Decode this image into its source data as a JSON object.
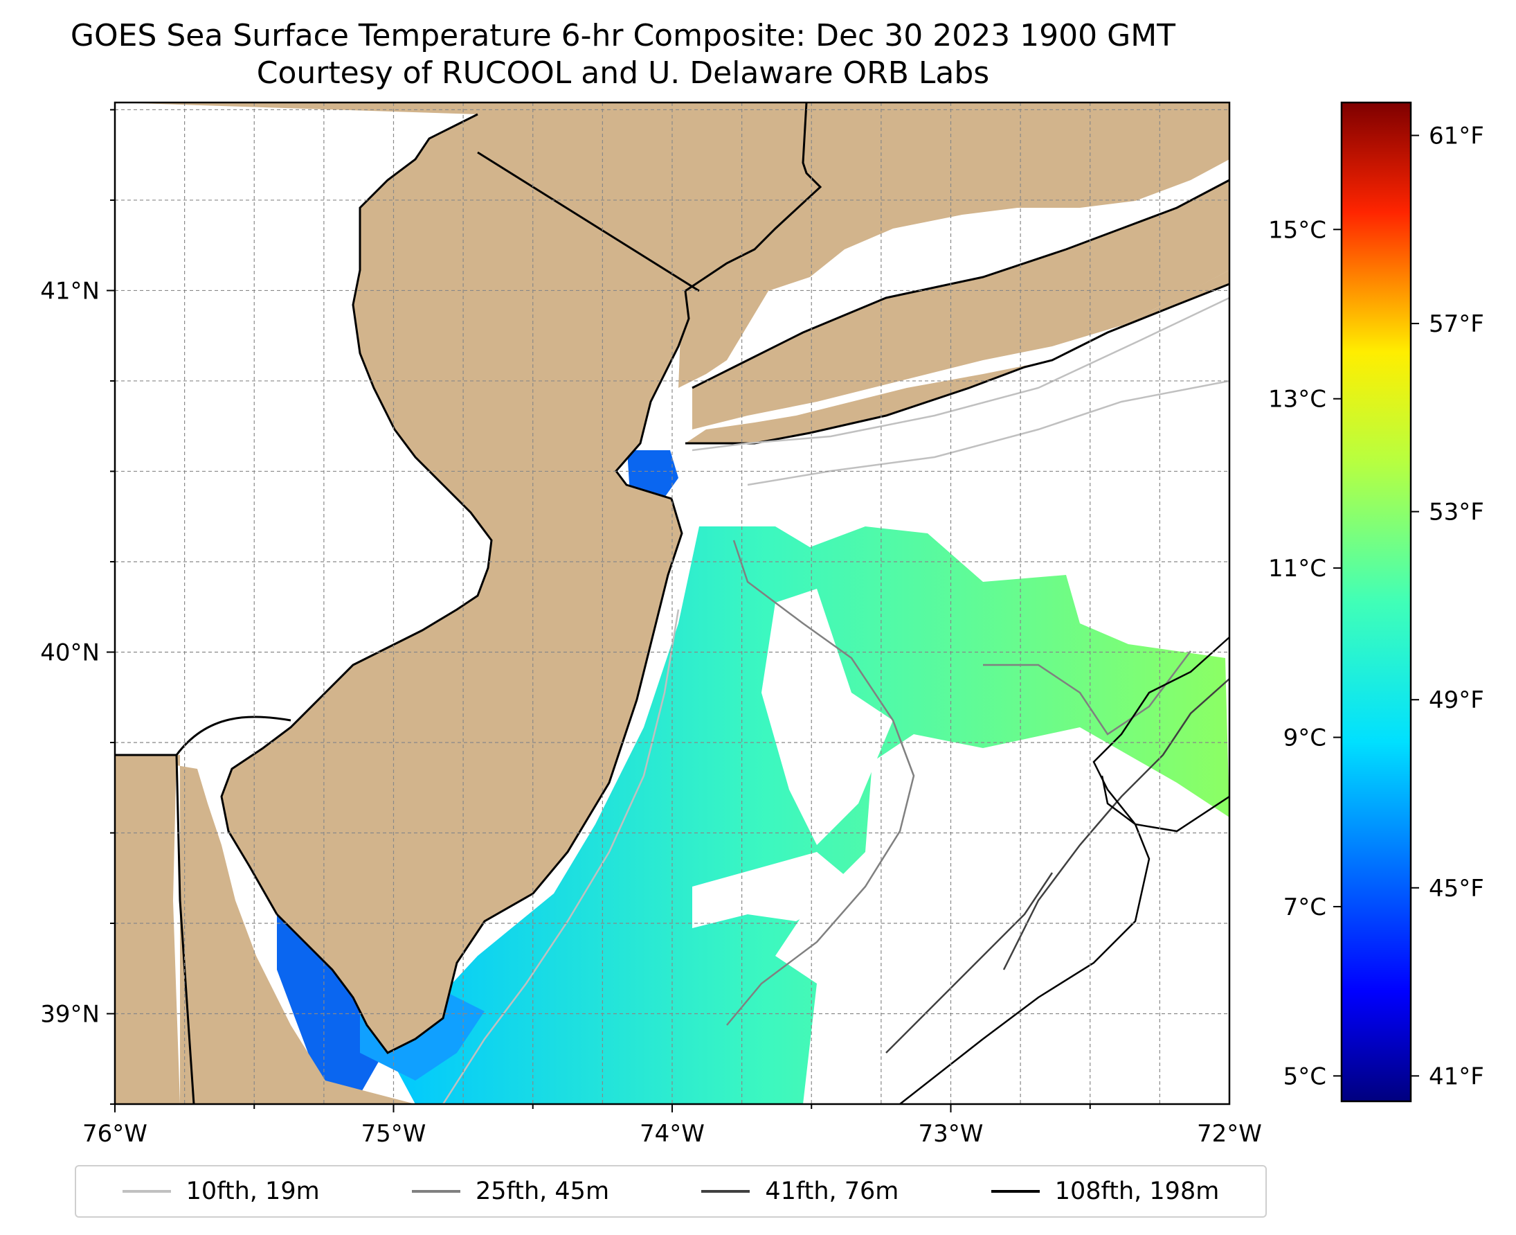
{
  "title": "GOES Sea Surface Temperature 6-hr Composite: Dec 30 2023 1900 GMT",
  "subtitle": "Courtesy of RUCOOL and U. Delaware ORB Labs",
  "map": {
    "extent": {
      "lon": [
        -76,
        -72
      ],
      "lat": [
        38.75,
        41.52
      ]
    },
    "lon_ticks": [
      {
        "value": -76,
        "label": "76°W"
      },
      {
        "value": -75,
        "label": "75°W"
      },
      {
        "value": -74,
        "label": "74°W"
      },
      {
        "value": -73,
        "label": "73°W"
      },
      {
        "value": -72,
        "label": "72°W"
      }
    ],
    "lat_ticks": [
      {
        "value": 41,
        "label": "41°N"
      },
      {
        "value": 40,
        "label": "40°N"
      },
      {
        "value": 39,
        "label": "39°N"
      }
    ],
    "gridlines": true,
    "colors": {
      "land": "#d2b48c",
      "ocean": "#ffffff",
      "coastline": "#000000"
    }
  },
  "colorbar": {
    "range_c": [
      4.7,
      16.5
    ],
    "celsius_ticks": [
      {
        "value": 5,
        "label": "5°C"
      },
      {
        "value": 7,
        "label": "7°C"
      },
      {
        "value": 9,
        "label": "9°C"
      },
      {
        "value": 11,
        "label": "11°C"
      },
      {
        "value": 13,
        "label": "13°C"
      },
      {
        "value": 15,
        "label": "15°C"
      }
    ],
    "fahrenheit_ticks": [
      {
        "value": 41,
        "label": "41°F"
      },
      {
        "value": 45,
        "label": "45°F"
      },
      {
        "value": 49,
        "label": "49°F"
      },
      {
        "value": 53,
        "label": "53°F"
      },
      {
        "value": 57,
        "label": "57°F"
      },
      {
        "value": 61,
        "label": "61°F"
      }
    ],
    "colormap": "jet"
  },
  "legend": {
    "items": [
      {
        "label": "10fth, 19m",
        "color": "#c0c0c0"
      },
      {
        "label": "25fth, 45m",
        "color": "#808080"
      },
      {
        "label": "41fth, 76m",
        "color": "#404040"
      },
      {
        "label": "108fth, 198m",
        "color": "#000000"
      }
    ]
  }
}
